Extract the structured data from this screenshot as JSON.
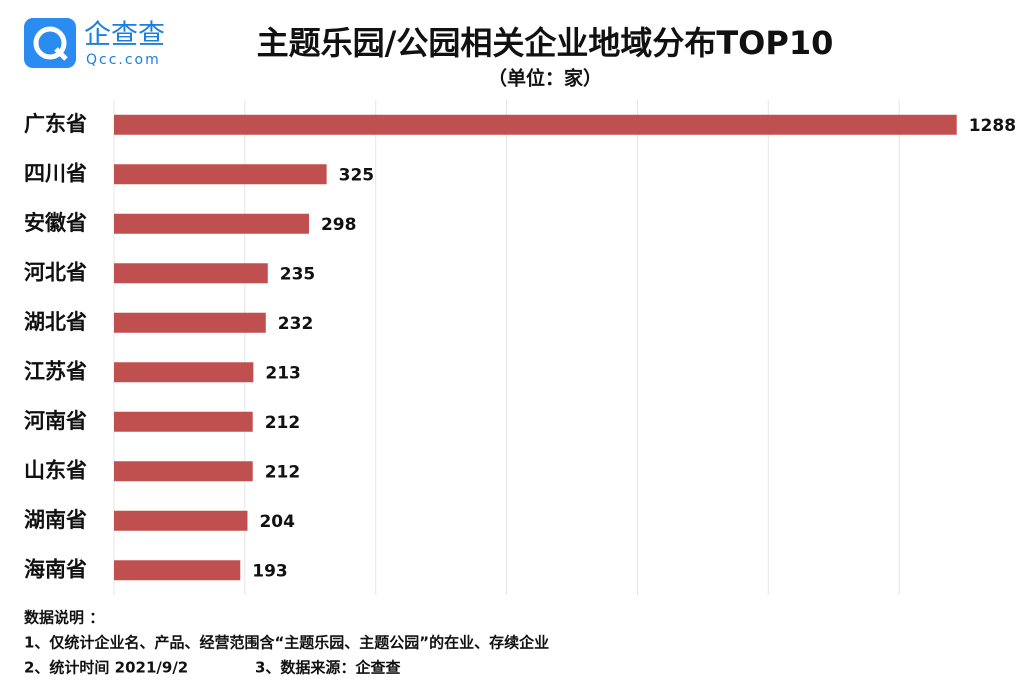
{
  "logo": {
    "name": "企查查",
    "site": "Qcc.com"
  },
  "chart_data": {
    "type": "bar",
    "orientation": "horizontal",
    "title": "主题乐园/公园相关企业地域分布TOP10",
    "subtitle": "（单位：家）",
    "categories": [
      "广东省",
      "四川省",
      "安徽省",
      "河北省",
      "湖北省",
      "江苏省",
      "河南省",
      "山东省",
      "湖南省",
      "海南省"
    ],
    "values": [
      1288,
      325,
      298,
      235,
      232,
      213,
      212,
      212,
      204,
      193
    ],
    "color": "#c0504f",
    "xlim": [
      0,
      1400
    ],
    "xticks": [
      0,
      200,
      400,
      600,
      800,
      1000,
      1200
    ],
    "grid": true
  },
  "notes": [
    "数据说明 ：",
    "1、仅统计企业名、产品、经营范围含“主题乐园、主题公园”的在业、存续企业",
    "2、统计时间 2021/9/2",
    "3、数据来源：企查查"
  ]
}
